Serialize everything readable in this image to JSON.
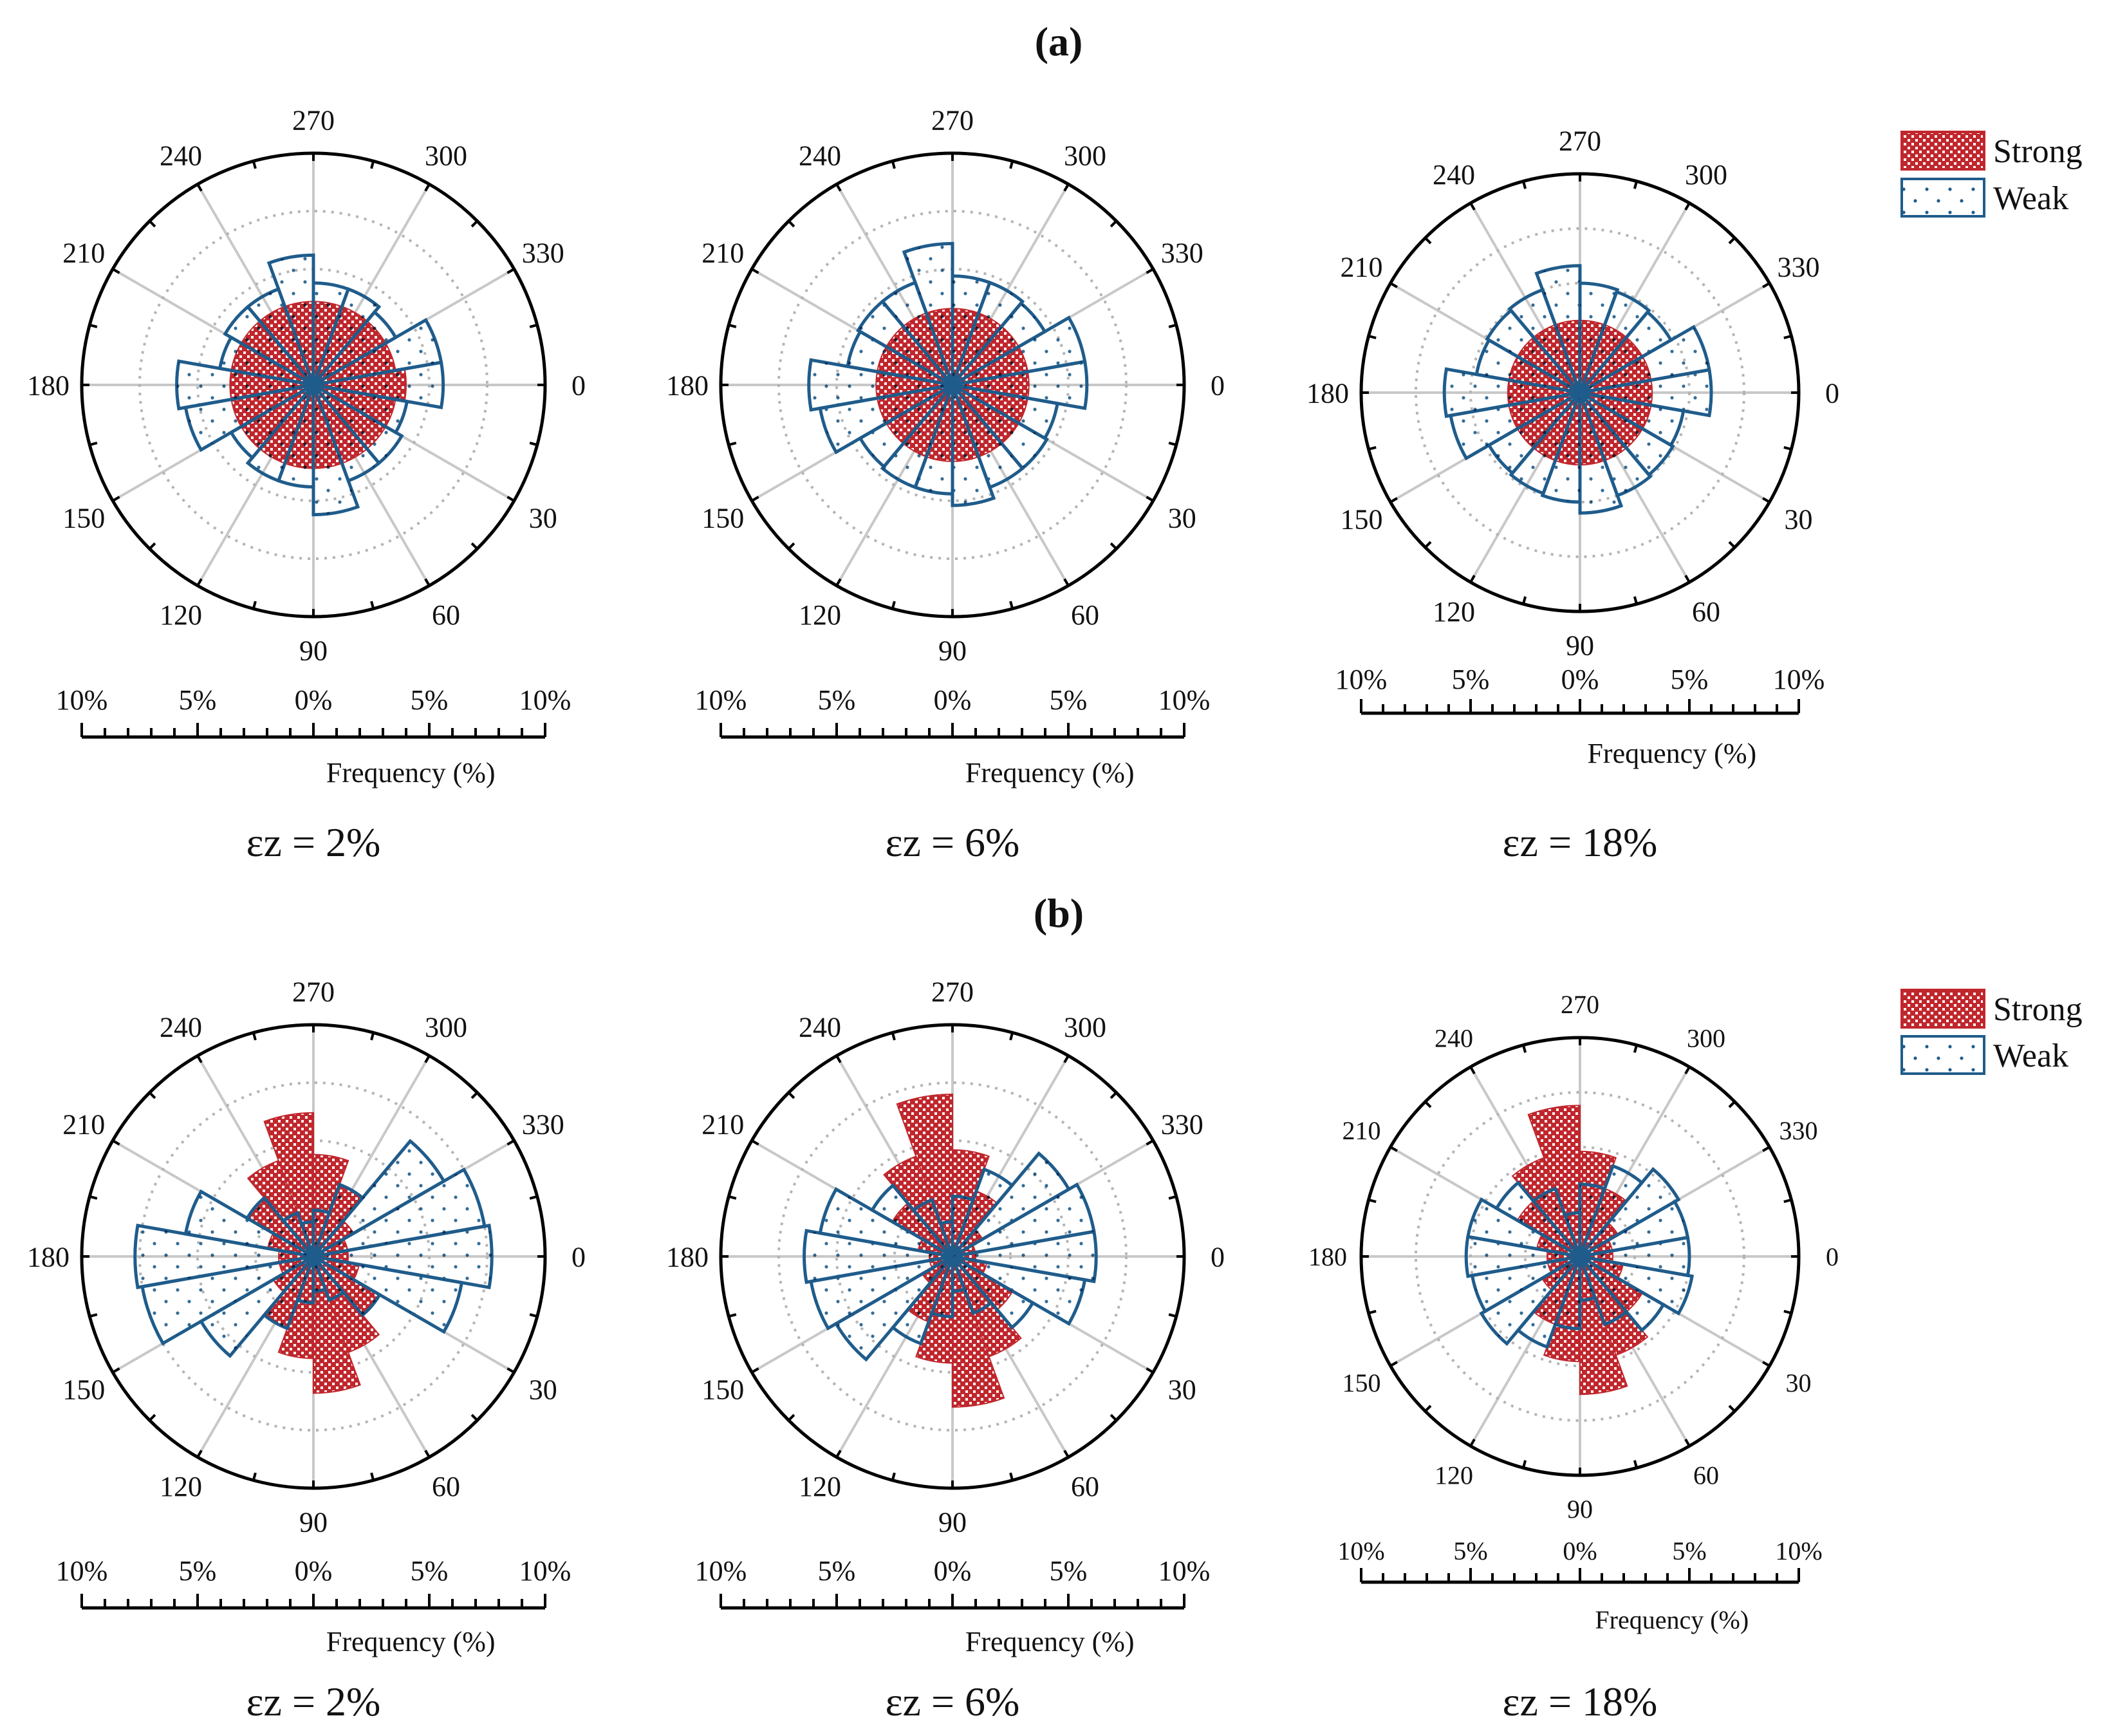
{
  "figure": {
    "panel_a_label": "(a)",
    "panel_b_label": "(b)"
  },
  "colors": {
    "strong": "#c0272d",
    "weak": "#1f5c8b",
    "grid": "#c8c8c8",
    "dotted": "#b4b4b4",
    "axis": "#000000"
  },
  "legend": {
    "strong_label": "Strong",
    "weak_label": "Weak"
  },
  "scale_labels": {
    "outer": "10%",
    "mid": "5%",
    "center": "0%",
    "xlabel": "Frequency (%)"
  },
  "chart_data": [
    {
      "type": "polar-rose",
      "panel": "(a)",
      "caption": "εz = 2%",
      "angle_labels": [
        "0",
        "30",
        "60",
        "90",
        "120",
        "150",
        "180",
        "210",
        "240",
        "270",
        "300",
        "330"
      ],
      "sector_width_deg": 20,
      "rmax": 10,
      "series": [
        {
          "name": "Strong",
          "angles": [
            0,
            20,
            40,
            60,
            80,
            100,
            120,
            140,
            160,
            180,
            200,
            220,
            240,
            260,
            280,
            300,
            320,
            340
          ],
          "values": [
            4.0,
            3.6,
            3.6,
            3.6,
            3.6,
            3.6,
            3.6,
            3.6,
            3.6,
            3.6,
            3.6,
            3.6,
            3.6,
            3.6,
            3.6,
            3.6,
            3.6,
            3.6
          ]
        },
        {
          "name": "Weak",
          "angles": [
            0,
            20,
            40,
            60,
            80,
            100,
            120,
            140,
            160,
            180,
            200,
            220,
            240,
            260,
            280,
            300,
            320,
            340
          ],
          "values": [
            5.6,
            4.1,
            4.4,
            4.4,
            5.6,
            4.4,
            4.4,
            4.1,
            5.6,
            5.9,
            4.1,
            4.4,
            4.4,
            5.6,
            4.4,
            4.4,
            4.1,
            5.6
          ]
        }
      ]
    },
    {
      "type": "polar-rose",
      "panel": "(a)",
      "caption": "εz = 6%",
      "angle_labels": [
        "0",
        "30",
        "60",
        "90",
        "120",
        "150",
        "180",
        "210",
        "240",
        "270",
        "300",
        "330"
      ],
      "sector_width_deg": 20,
      "rmax": 10,
      "series": [
        {
          "name": "Strong",
          "angles": [
            0,
            20,
            40,
            60,
            80,
            100,
            120,
            140,
            160,
            180,
            200,
            220,
            240,
            260,
            280,
            300,
            320,
            340
          ],
          "values": [
            3.3,
            3.3,
            3.3,
            3.3,
            3.3,
            3.3,
            3.3,
            3.3,
            3.3,
            3.3,
            3.3,
            3.3,
            3.3,
            3.3,
            3.3,
            3.3,
            3.3,
            3.3
          ]
        },
        {
          "name": "Weak",
          "angles": [
            0,
            20,
            40,
            60,
            80,
            100,
            120,
            140,
            160,
            180,
            200,
            220,
            240,
            260,
            280,
            300,
            320,
            340
          ],
          "values": [
            5.8,
            4.6,
            4.7,
            4.7,
            5.2,
            4.7,
            4.7,
            4.6,
            5.8,
            6.2,
            4.6,
            4.7,
            4.7,
            6.1,
            4.7,
            4.7,
            4.6,
            5.8
          ]
        }
      ]
    },
    {
      "type": "polar-rose",
      "panel": "(a)",
      "caption": "εz = 18%",
      "angle_labels": [
        "0",
        "30",
        "60",
        "90",
        "120",
        "150",
        "180",
        "210",
        "240",
        "270",
        "300",
        "330"
      ],
      "sector_width_deg": 20,
      "rmax": 10,
      "series": [
        {
          "name": "Strong",
          "angles": [
            0,
            20,
            40,
            60,
            80,
            100,
            120,
            140,
            160,
            180,
            200,
            220,
            240,
            260,
            280,
            300,
            320,
            340
          ],
          "values": [
            3.3,
            3.3,
            3.3,
            3.3,
            3.3,
            3.3,
            3.3,
            3.3,
            3.3,
            3.3,
            3.3,
            3.3,
            3.3,
            3.3,
            3.3,
            3.3,
            3.3,
            3.3
          ]
        },
        {
          "name": "Weak",
          "angles": [
            0,
            20,
            40,
            60,
            80,
            100,
            120,
            140,
            160,
            180,
            200,
            220,
            240,
            260,
            280,
            300,
            320,
            340
          ],
          "values": [
            6.0,
            4.8,
            4.9,
            5.0,
            5.5,
            5.0,
            4.9,
            4.8,
            6.0,
            6.2,
            4.8,
            4.9,
            5.0,
            5.8,
            5.0,
            4.9,
            4.8,
            6.0
          ]
        }
      ]
    },
    {
      "type": "polar-rose",
      "panel": "(b)",
      "caption": "εz = 2%",
      "angle_labels": [
        "0",
        "30",
        "60",
        "90",
        "120",
        "150",
        "180",
        "210",
        "240",
        "270",
        "300",
        "330"
      ],
      "sector_width_deg": 20,
      "rmax": 10,
      "series": [
        {
          "name": "Strong",
          "angles": [
            0,
            20,
            40,
            60,
            80,
            100,
            120,
            140,
            160,
            180,
            200,
            220,
            240,
            260,
            280,
            300,
            320,
            340
          ],
          "values": [
            1.5,
            2.0,
            3.3,
            4.4,
            5.9,
            4.4,
            3.3,
            2.0,
            1.5,
            1.5,
            2.0,
            3.3,
            4.4,
            6.2,
            4.4,
            3.3,
            2.0,
            1.5
          ]
        },
        {
          "name": "Weak",
          "angles": [
            0,
            20,
            40,
            60,
            80,
            100,
            120,
            140,
            160,
            180,
            200,
            220,
            240,
            260,
            280,
            300,
            320,
            340
          ],
          "values": [
            7.7,
            6.5,
            3.3,
            2.0,
            1.5,
            2.0,
            3.3,
            5.6,
            7.5,
            7.7,
            5.6,
            3.3,
            2.0,
            1.5,
            2.0,
            3.3,
            6.5,
            7.5
          ]
        }
      ]
    },
    {
      "type": "polar-rose",
      "panel": "(b)",
      "caption": "εz = 6%",
      "angle_labels": [
        "0",
        "30",
        "60",
        "90",
        "120",
        "150",
        "180",
        "210",
        "240",
        "270",
        "300",
        "330"
      ],
      "sector_width_deg": 20,
      "rmax": 10,
      "series": [
        {
          "name": "Strong",
          "angles": [
            0,
            20,
            40,
            60,
            80,
            100,
            120,
            140,
            160,
            180,
            200,
            220,
            240,
            260,
            280,
            300,
            320,
            340
          ],
          "values": [
            1.0,
            1.5,
            3.0,
            4.6,
            6.5,
            4.6,
            3.0,
            1.5,
            1.0,
            1.0,
            1.5,
            3.0,
            4.6,
            7.0,
            4.6,
            3.0,
            1.5,
            1.0
          ]
        },
        {
          "name": "Weak",
          "angles": [
            0,
            20,
            40,
            60,
            80,
            100,
            120,
            140,
            160,
            180,
            200,
            220,
            240,
            260,
            280,
            300,
            320,
            340
          ],
          "values": [
            6.2,
            5.8,
            4.0,
            2.6,
            1.5,
            2.6,
            4.0,
            5.8,
            6.2,
            6.4,
            5.8,
            4.0,
            2.6,
            1.5,
            2.6,
            4.0,
            5.8,
            6.2
          ]
        }
      ]
    },
    {
      "type": "polar-rose",
      "panel": "(b)",
      "caption": "εz = 18%",
      "angle_labels": [
        "0",
        "30",
        "60",
        "90",
        "120",
        "150",
        "180",
        "210",
        "240",
        "270",
        "300",
        "330"
      ],
      "sector_width_deg": 20,
      "rmax": 10,
      "series": [
        {
          "name": "Strong",
          "angles": [
            0,
            20,
            40,
            60,
            80,
            100,
            120,
            140,
            160,
            180,
            200,
            220,
            240,
            260,
            280,
            300,
            320,
            340
          ],
          "values": [
            1.5,
            2.0,
            3.3,
            4.8,
            6.3,
            4.8,
            3.3,
            2.0,
            1.5,
            1.5,
            2.0,
            3.3,
            4.8,
            6.9,
            4.8,
            3.3,
            2.0,
            1.5
          ]
        },
        {
          "name": "Weak",
          "angles": [
            0,
            20,
            40,
            60,
            80,
            100,
            120,
            140,
            160,
            180,
            200,
            220,
            240,
            260,
            280,
            300,
            320,
            340
          ],
          "values": [
            5.0,
            5.2,
            4.4,
            3.3,
            2.0,
            3.3,
            4.4,
            5.2,
            5.0,
            5.2,
            5.2,
            4.4,
            3.3,
            2.0,
            3.3,
            4.4,
            5.2,
            5.0
          ]
        }
      ]
    }
  ]
}
